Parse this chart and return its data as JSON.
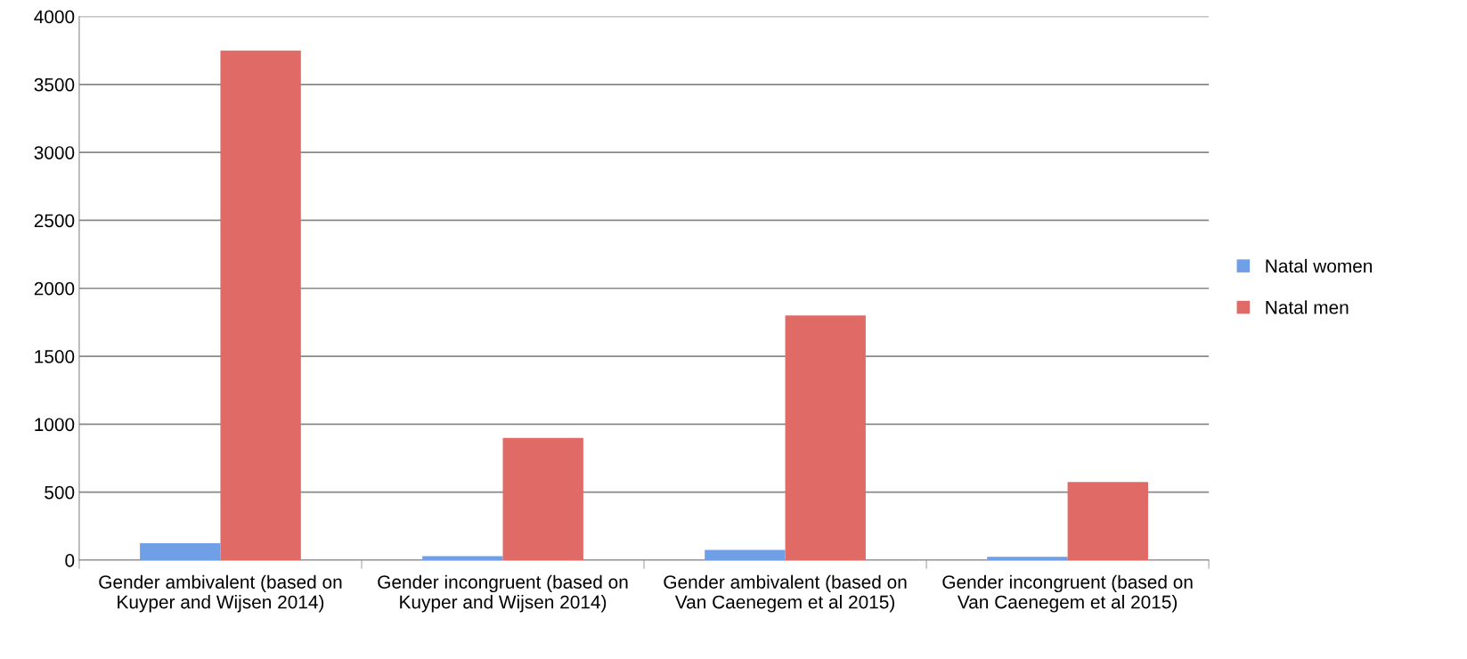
{
  "chart_data": {
    "type": "bar",
    "categories": [
      "Gender ambivalent (based on\nKuyper and Wijsen 2014)",
      "Gender incongruent (based on\nKuyper and Wijsen 2014)",
      "Gender ambivalent (based on\nVan Caenegem et al 2015)",
      "Gender incongruent (based on\nVan Caenegem et al 2015)"
    ],
    "series": [
      {
        "name": "Natal women",
        "color": "#6f9fe6",
        "values": [
          125,
          30,
          75,
          25
        ]
      },
      {
        "name": "Natal men",
        "color": "#e06a66",
        "values": [
          3750,
          900,
          1800,
          575
        ]
      }
    ],
    "ylim": [
      0,
      4000
    ],
    "yticks": [
      0,
      500,
      1000,
      1500,
      2000,
      2500,
      3000,
      3500,
      4000
    ],
    "grid": "y",
    "legend": "right"
  }
}
